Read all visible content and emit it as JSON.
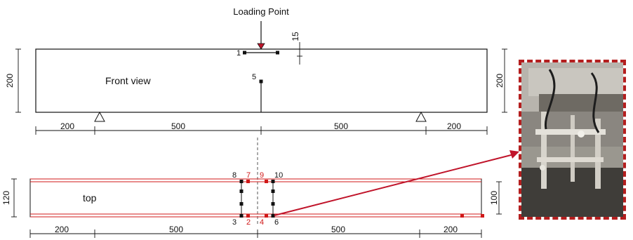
{
  "colors": {
    "line": "#111111",
    "accent": "#c0142a",
    "sensor_black": "#111111",
    "sensor_red": "#d01818",
    "frame": "#b41e1e"
  },
  "loading_point_label": "Loading Point",
  "front_view": {
    "label": "Front view",
    "height_left": "200",
    "height_right": "200",
    "offset_label": "15",
    "dims": [
      "200",
      "500",
      "500",
      "200"
    ],
    "points": [
      "1",
      "5"
    ]
  },
  "top_view": {
    "label": "top",
    "width_left": "120",
    "width_right": "100",
    "dims": [
      "200",
      "500",
      "500",
      "200"
    ],
    "points_black": [
      "8",
      "10",
      "3",
      "6"
    ],
    "points_red": [
      "7",
      "9",
      "2",
      "4"
    ]
  },
  "photo": {
    "description_icon": "photo-of-test-setup"
  }
}
